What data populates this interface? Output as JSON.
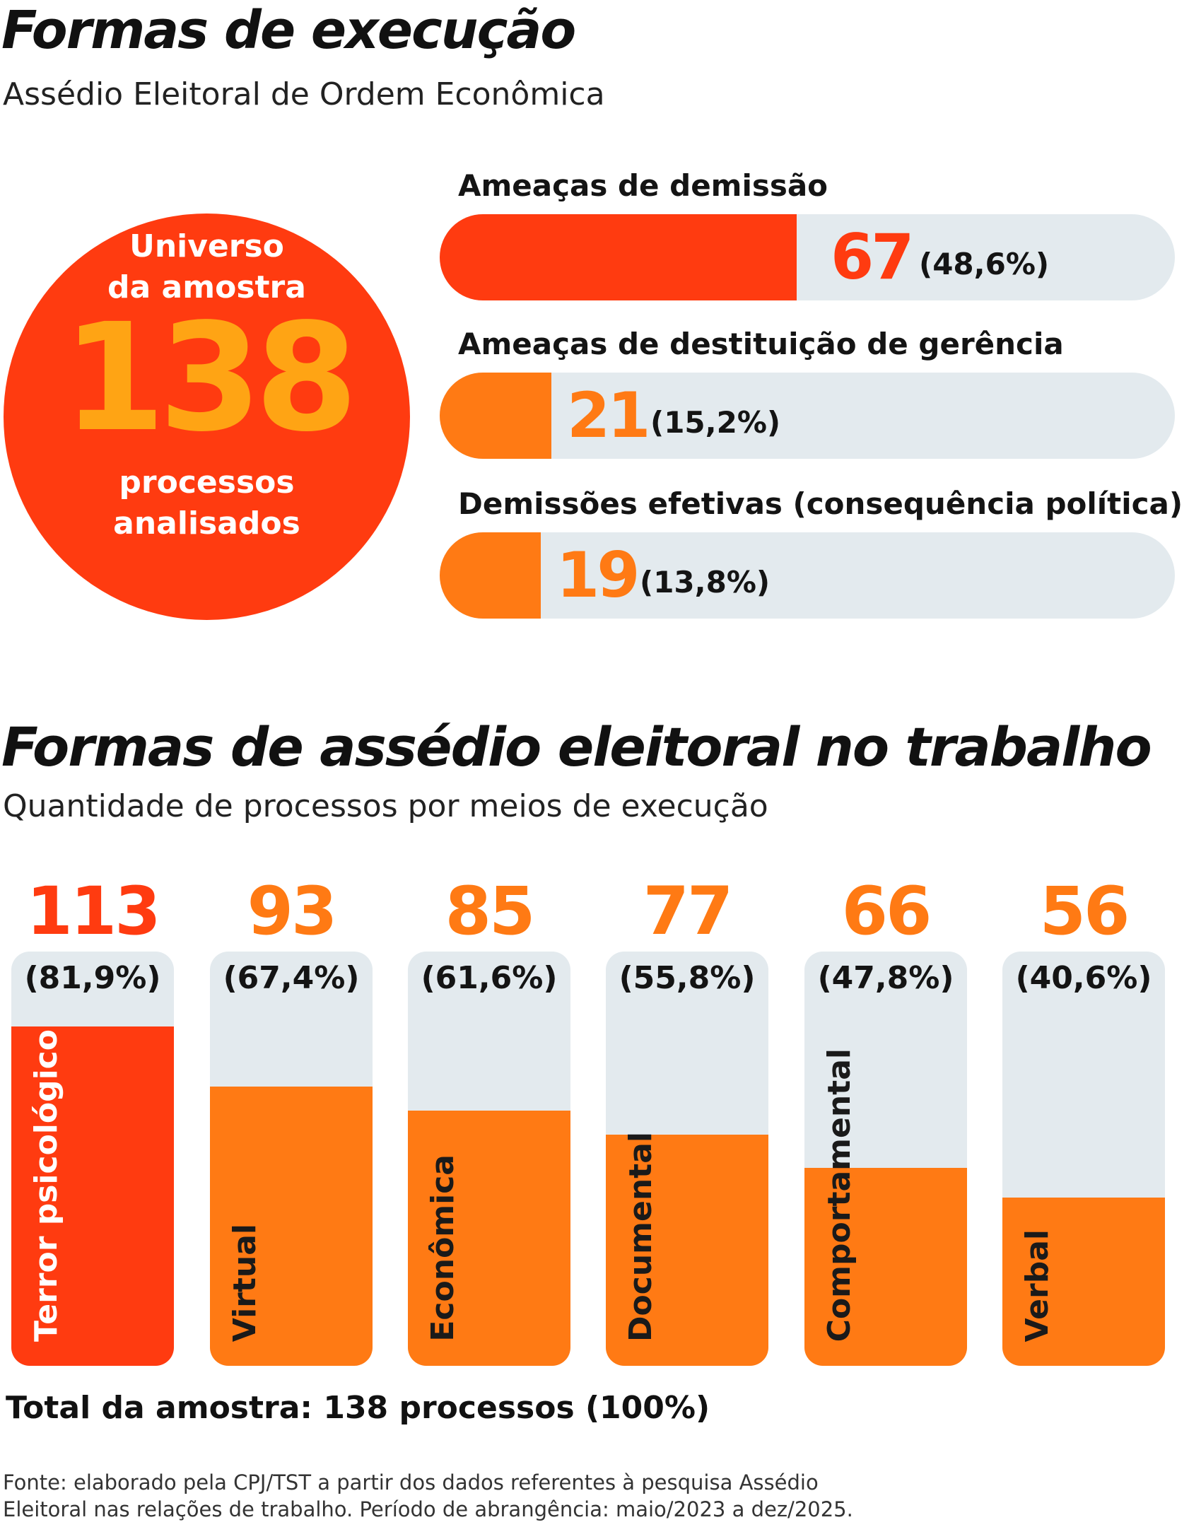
{
  "section1": {
    "title": "Formas de execução",
    "subtitle": "Assédio Eleitoral de Ordem Econômica"
  },
  "circle": {
    "label_top_1": "Universo",
    "label_top_2": "da amostra",
    "value": "138",
    "label_bottom_1": "processos",
    "label_bottom_2": "analisados"
  },
  "section2": {
    "title": "Formas de assédio eleitoral no trabalho",
    "subtitle": "Quantidade de processos por meios de execução"
  },
  "colors": {
    "red": "#ff3b10",
    "orange": "#ff7a14",
    "gold": "#ffa414",
    "track": "#e3eaee"
  },
  "chart_data": [
    {
      "type": "bar",
      "orientation": "horizontal",
      "total": 138,
      "categories": [
        "Ameaças de demissão",
        "Ameaças de destituição de gerência",
        "Demissões efetivas (consequência política)"
      ],
      "values": [
        67,
        21,
        19
      ],
      "value_labels": [
        "67",
        "21",
        "19"
      ],
      "percent_labels": [
        "(48,6%)",
        "(15,2%)",
        "(13,8%)"
      ],
      "colors": [
        "#ff3b10",
        "#ff7a14",
        "#ff7a14"
      ]
    },
    {
      "type": "bar",
      "orientation": "vertical",
      "total": 138,
      "categories": [
        "Terror psicológico",
        "Virtual",
        "Econômica",
        "Documental",
        "Comportamental",
        "Verbal"
      ],
      "values": [
        113,
        93,
        85,
        77,
        66,
        56
      ],
      "value_labels": [
        "113",
        "93",
        "85",
        "77",
        "66",
        "56"
      ],
      "percent_labels": [
        "(81,9%)",
        "(67,4%)",
        "(61,6%)",
        "(55,8%)",
        "(47,8%)",
        "(40,6%)"
      ],
      "colors": [
        "#ff3b10",
        "#ff7a14",
        "#ff7a14",
        "#ff7a14",
        "#ff7a14",
        "#ff7a14"
      ]
    }
  ],
  "total_note": "Total da amostra: 138 processos (100%)",
  "source": {
    "line1": "Fonte: elaborado pela CPJ/TST a partir dos dados referentes à pesquisa Assédio",
    "line2": "Eleitoral nas relações de trabalho. Período de abrangência: maio/2023 a dez/2025."
  }
}
